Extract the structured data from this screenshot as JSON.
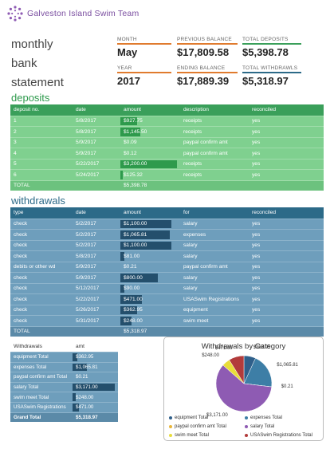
{
  "brand": {
    "name": "Galveston Island Swim Team"
  },
  "statement": {
    "line1": "monthly",
    "line2": "bank",
    "line3": "statement"
  },
  "metrics": {
    "month": {
      "label": "MONTH",
      "value": "May",
      "color": "#e07b2e"
    },
    "year": {
      "label": "YEAR",
      "value": "2017",
      "color": "#e07b2e"
    },
    "prev_balance": {
      "label": "PREVIOUS BALANCE",
      "value": "$17,809.58",
      "color": "#e07b2e"
    },
    "end_balance": {
      "label": "ENDING BALANCE",
      "value": "$17,889.39",
      "color": "#e07b2e"
    },
    "total_deposits": {
      "label": "TOTAL DEPOSITS",
      "value": "$5,398.78",
      "color": "#3a9f5a"
    },
    "total_withdrawals": {
      "label": "TOTAL WITHDRAWLS",
      "value": "$5,318.97",
      "color": "#2c6a88"
    }
  },
  "deposits": {
    "title": "deposits",
    "headers": [
      "deposit no.",
      "date",
      "amount",
      "description",
      "reconciled"
    ],
    "rows": [
      {
        "no": "1",
        "date": "5/8/2017",
        "amount": "$927.75",
        "value": 927.75,
        "description": "receipts",
        "reconciled": "yes"
      },
      {
        "no": "2",
        "date": "5/8/2017",
        "amount": "$1,145.50",
        "value": 1145.5,
        "description": "receipts",
        "reconciled": "yes"
      },
      {
        "no": "3",
        "date": "5/9/2017",
        "amount": "$0.09",
        "value": 0.09,
        "description": "paypal confirm amt",
        "reconciled": "yes"
      },
      {
        "no": "4",
        "date": "5/9/2017",
        "amount": "$0.12",
        "value": 0.12,
        "description": "paypal confirm amt",
        "reconciled": "yes"
      },
      {
        "no": "5",
        "date": "5/22/2017",
        "amount": "$3,200.00",
        "value": 3200.0,
        "description": "receipts",
        "reconciled": "yes"
      },
      {
        "no": "6",
        "date": "5/24/2017",
        "amount": "$125.32",
        "value": 125.32,
        "description": "receipts",
        "reconciled": "yes"
      }
    ],
    "total_label": "TOTAL",
    "total_amount": "$5,398.78"
  },
  "withdrawals": {
    "title": "withdrawals",
    "headers": [
      "type",
      "date",
      "amount",
      "for",
      "reconciled"
    ],
    "rows": [
      {
        "type": "check",
        "date": "5/2/2017",
        "amount": "$1,100.00",
        "value": 1100.0,
        "for": "salary",
        "reconciled": "yes"
      },
      {
        "type": "check",
        "date": "5/2/2017",
        "amount": "$1,065.81",
        "value": 1065.81,
        "for": "expenses",
        "reconciled": "yes"
      },
      {
        "type": "check",
        "date": "5/2/2017",
        "amount": "$1,100.00",
        "value": 1100.0,
        "for": "salary",
        "reconciled": "yes"
      },
      {
        "type": "check",
        "date": "5/8/2017",
        "amount": "$81.00",
        "value": 81.0,
        "for": "salary",
        "reconciled": "yes"
      },
      {
        "type": "debits or other wd",
        "date": "5/9/2017",
        "amount": "$0.21",
        "value": 0.21,
        "for": "paypal confirm amt",
        "reconciled": "yes"
      },
      {
        "type": "check",
        "date": "5/9/2017",
        "amount": "$800.00",
        "value": 800.0,
        "for": "salary",
        "reconciled": "yes"
      },
      {
        "type": "check",
        "date": "5/12/2017",
        "amount": "$90.00",
        "value": 90.0,
        "for": "salary",
        "reconciled": "yes"
      },
      {
        "type": "check",
        "date": "5/22/2017",
        "amount": "$471.00",
        "value": 471.0,
        "for": "USASwim Registrations",
        "reconciled": "yes"
      },
      {
        "type": "check",
        "date": "5/26/2017",
        "amount": "$362.95",
        "value": 362.95,
        "for": "equipment",
        "reconciled": "yes"
      },
      {
        "type": "check",
        "date": "5/31/2017",
        "amount": "$248.00",
        "value": 248.0,
        "for": "swim meet",
        "reconciled": "yes"
      }
    ],
    "total_label": "TOTAL",
    "total_amount": "$5,318.97"
  },
  "pivot": {
    "headers": [
      "Withdrawals",
      "amt"
    ],
    "rows": [
      {
        "label": "equipment Total",
        "amount": "$362.95",
        "value": 362.95
      },
      {
        "label": "expenses Total",
        "amount": "$1,065.81",
        "value": 1065.81
      },
      {
        "label": "paypal confirm amt Total",
        "amount": "$0.21",
        "value": 0.21
      },
      {
        "label": "salary Total",
        "amount": "$3,171.00",
        "value": 3171.0
      },
      {
        "label": "swim meet Total",
        "amount": "$248.00",
        "value": 248.0
      },
      {
        "label": "USASwim Registrations",
        "amount": "$471.00",
        "value": 471.0
      }
    ],
    "grand_label": "Grand Total",
    "grand_amount": "$5,318.97"
  },
  "chart_data": {
    "type": "pie",
    "title": "Withdrawals by Category",
    "categories": [
      "equipment Total",
      "expenses Total",
      "paypal confirm amt Total",
      "salary Total",
      "swim meet Total",
      "USASwim Registrations Total"
    ],
    "values": [
      362.95,
      1065.81,
      0.21,
      3171.0,
      248.0,
      471.0
    ],
    "data_labels": [
      "$362.95",
      "$1,065.81",
      "$0.21",
      "$3,171.00",
      "$248.00",
      "$471.00"
    ],
    "colors": [
      "#2f5f8a",
      "#3d7ea6",
      "#e8b63a",
      "#8e5bb3",
      "#e8dd3a",
      "#b23b3b"
    ],
    "legend_position": "bottom"
  }
}
